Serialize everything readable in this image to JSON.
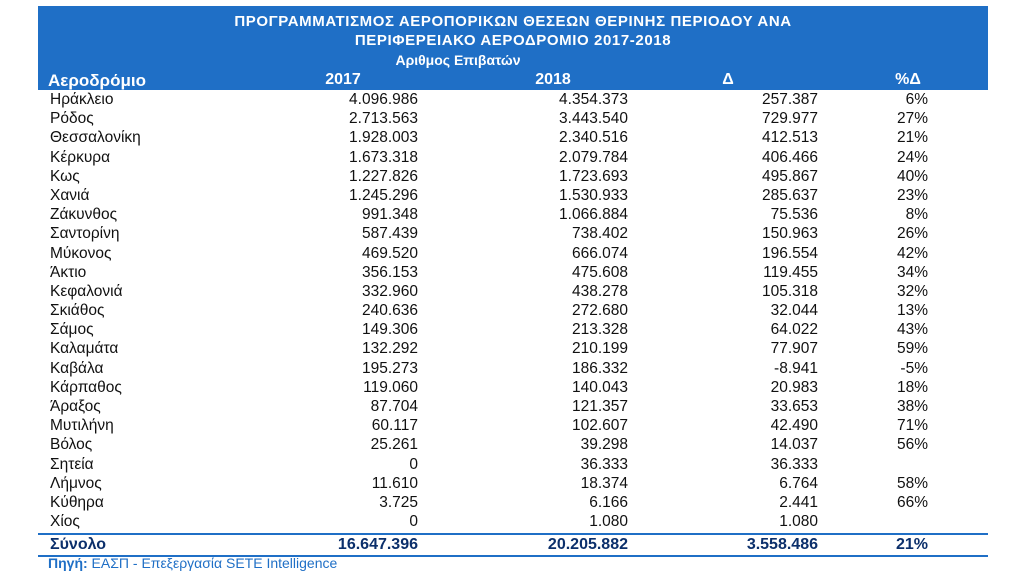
{
  "header": {
    "title_line1": "ΠΡΟΓΡΑΜΜΑΤΙΣΜΟΣ ΑΕΡΟΠΟΡΙΚΩΝ ΘΕΣΕΩΝ ΘΕΡΙΝΗΣ ΠΕΡΙΟΔΟΥ ΑΝΑ",
    "title_line2": "ΠΕΡΙΦΕΡΕΙΑΚΟ ΑΕΡΟΔΡΟΜΙΟ 2017-2018",
    "group_label": "Αριθμος Επιβατών",
    "col_airport": "Αεροδρόμιο",
    "col_2017": "2017",
    "col_2018": "2018",
    "col_delta": "Δ",
    "col_pct": "%Δ"
  },
  "rows": [
    {
      "name": "Ηράκλειο",
      "y2017": "4.096.986",
      "y2018": "4.354.373",
      "delta": "257.387",
      "pct": "6%"
    },
    {
      "name": "Ρόδος",
      "y2017": "2.713.563",
      "y2018": "3.443.540",
      "delta": "729.977",
      "pct": "27%"
    },
    {
      "name": "Θεσσαλονίκη",
      "y2017": "1.928.003",
      "y2018": "2.340.516",
      "delta": "412.513",
      "pct": "21%"
    },
    {
      "name": "Κέρκυρα",
      "y2017": "1.673.318",
      "y2018": "2.079.784",
      "delta": "406.466",
      "pct": "24%"
    },
    {
      "name": "Κως",
      "y2017": "1.227.826",
      "y2018": "1.723.693",
      "delta": "495.867",
      "pct": "40%"
    },
    {
      "name": "Χανιά",
      "y2017": "1.245.296",
      "y2018": "1.530.933",
      "delta": "285.637",
      "pct": "23%"
    },
    {
      "name": "Ζάκυνθος",
      "y2017": "991.348",
      "y2018": "1.066.884",
      "delta": "75.536",
      "pct": "8%"
    },
    {
      "name": "Σαντορίνη",
      "y2017": "587.439",
      "y2018": "738.402",
      "delta": "150.963",
      "pct": "26%"
    },
    {
      "name": "Μύκονος",
      "y2017": "469.520",
      "y2018": "666.074",
      "delta": "196.554",
      "pct": "42%"
    },
    {
      "name": "Άκτιο",
      "y2017": "356.153",
      "y2018": "475.608",
      "delta": "119.455",
      "pct": "34%"
    },
    {
      "name": "Κεφαλονιά",
      "y2017": "332.960",
      "y2018": "438.278",
      "delta": "105.318",
      "pct": "32%"
    },
    {
      "name": "Σκιάθος",
      "y2017": "240.636",
      "y2018": "272.680",
      "delta": "32.044",
      "pct": "13%"
    },
    {
      "name": "Σάμος",
      "y2017": "149.306",
      "y2018": "213.328",
      "delta": "64.022",
      "pct": "43%"
    },
    {
      "name": "Καλαμάτα",
      "y2017": "132.292",
      "y2018": "210.199",
      "delta": "77.907",
      "pct": "59%"
    },
    {
      "name": "Καβάλα",
      "y2017": "195.273",
      "y2018": "186.332",
      "delta": "-8.941",
      "pct": "-5%"
    },
    {
      "name": "Κάρπαθος",
      "y2017": "119.060",
      "y2018": "140.043",
      "delta": "20.983",
      "pct": "18%"
    },
    {
      "name": "Άραξος",
      "y2017": "87.704",
      "y2018": "121.357",
      "delta": "33.653",
      "pct": "38%"
    },
    {
      "name": "Μυτιλήνη",
      "y2017": "60.117",
      "y2018": "102.607",
      "delta": "42.490",
      "pct": "71%"
    },
    {
      "name": "Βόλος",
      "y2017": "25.261",
      "y2018": "39.298",
      "delta": "14.037",
      "pct": "56%"
    },
    {
      "name": "Σητεία",
      "y2017": "0",
      "y2018": "36.333",
      "delta": "36.333",
      "pct": ""
    },
    {
      "name": "Λήμνος",
      "y2017": "11.610",
      "y2018": "18.374",
      "delta": "6.764",
      "pct": "58%"
    },
    {
      "name": "Κύθηρα",
      "y2017": "3.725",
      "y2018": "6.166",
      "delta": "2.441",
      "pct": "66%"
    },
    {
      "name": "Χίος",
      "y2017": "0",
      "y2018": "1.080",
      "delta": "1.080",
      "pct": ""
    }
  ],
  "total": {
    "name": "Σύνολο",
    "y2017": "16.647.396",
    "y2018": "20.205.882",
    "delta": "3.558.486",
    "pct": "21%"
  },
  "source": {
    "label": "Πηγή:",
    "text": " ΕΑΣΠ - Επεξεργασία SETE Intelligence"
  },
  "colors": {
    "header_bg": "#1f6fc6",
    "source_text": "#1f6fc6",
    "total_text": "#0b2f6b"
  }
}
